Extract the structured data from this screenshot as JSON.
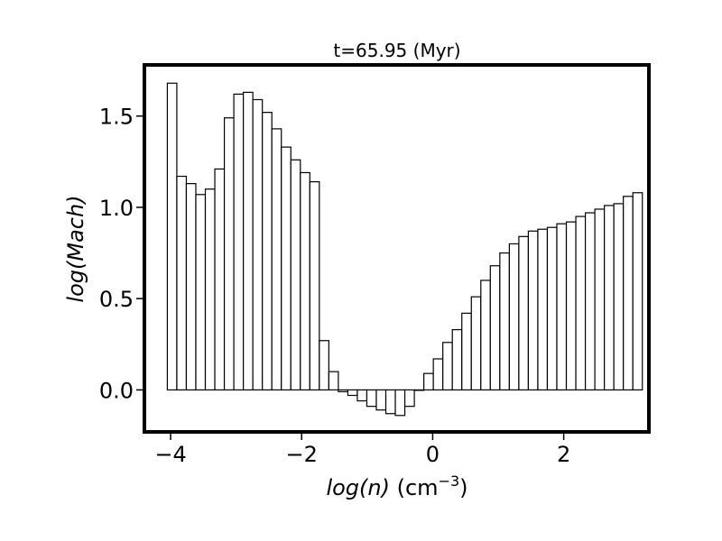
{
  "chart_data": {
    "type": "bar",
    "title": "t=65.95 (Myr)",
    "xlabel": {
      "italic": "log(n)",
      "unit_base": " (cm",
      "unit_sup": "−3",
      "unit_end": ")"
    },
    "ylabel": "log(Mach)",
    "xlim": [
      -4.4,
      3.3
    ],
    "ylim": [
      -0.23,
      1.78
    ],
    "xticks": [
      -4,
      -2,
      0,
      2
    ],
    "xtick_labels": [
      "−4",
      "−2",
      "0",
      "2"
    ],
    "yticks": [
      0.0,
      0.5,
      1.0,
      1.5
    ],
    "ytick_labels": [
      "0.0",
      "0.5",
      "1.0",
      "1.5"
    ],
    "bin_start": -4.05,
    "bin_width": 0.145,
    "values": [
      1.68,
      1.17,
      1.13,
      1.07,
      1.1,
      1.21,
      1.49,
      1.62,
      1.63,
      1.59,
      1.52,
      1.43,
      1.33,
      1.26,
      1.19,
      1.14,
      0.27,
      0.1,
      -0.01,
      -0.03,
      -0.06,
      -0.09,
      -0.11,
      -0.13,
      -0.14,
      -0.09,
      0.0,
      0.09,
      0.17,
      0.26,
      0.33,
      0.42,
      0.51,
      0.6,
      0.68,
      0.75,
      0.8,
      0.84,
      0.87,
      0.88,
      0.89,
      0.91,
      0.92,
      0.95,
      0.97,
      0.99,
      1.01,
      1.02,
      1.06,
      1.08
    ],
    "bar_fill": "#ffffff",
    "bar_edge": "#000000",
    "grid": false
  }
}
